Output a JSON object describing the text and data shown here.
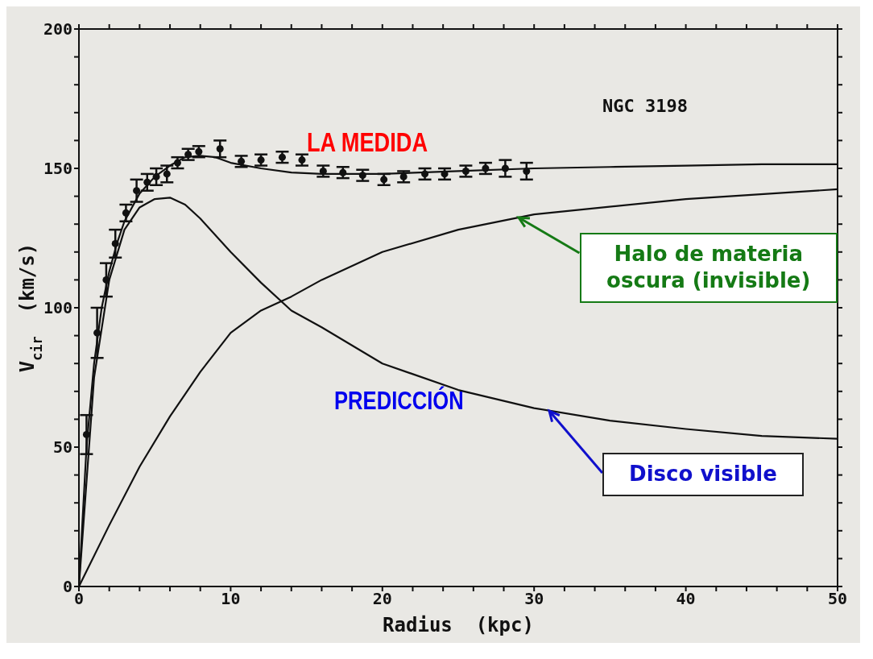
{
  "chart_data": {
    "type": "line",
    "xlabel": "Radius  (kpc)",
    "ylabel": "V$_{cir}$  (km/s)",
    "xlim": [
      0,
      50
    ],
    "ylim": [
      0,
      200
    ],
    "xticks": [
      0,
      {
        "value": 2,
        "label": null
      },
      {
        "value": 4,
        "label": null
      },
      {
        "value": 6,
        "label": null
      },
      {
        "value": 8,
        "label": null
      },
      10,
      {
        "value": 12,
        "label": null
      },
      {
        "value": 14,
        "label": null
      },
      {
        "value": 16,
        "label": null
      },
      {
        "value": 18,
        "label": null
      },
      20,
      {
        "value": 22,
        "label": null
      },
      {
        "value": 24,
        "label": null
      },
      {
        "value": 26,
        "label": null
      },
      {
        "value": 28,
        "label": null
      },
      30,
      {
        "value": 32,
        "label": null
      },
      {
        "value": 34,
        "label": null
      },
      {
        "value": 36,
        "label": null
      },
      {
        "value": 38,
        "label": null
      },
      40,
      {
        "value": 42,
        "label": null
      },
      {
        "value": 44,
        "label": null
      },
      {
        "value": 46,
        "label": null
      },
      {
        "value": 48,
        "label": null
      },
      50
    ],
    "yticks": [
      0,
      {
        "value": 10,
        "label": null
      },
      {
        "value": 20,
        "label": null
      },
      {
        "value": 30,
        "label": null
      },
      {
        "value": 40,
        "label": null
      },
      50,
      {
        "value": 60,
        "label": null
      },
      {
        "value": 70,
        "label": null
      },
      {
        "value": 80,
        "label": null
      },
      {
        "value": 90,
        "label": null
      },
      100,
      {
        "value": 110,
        "label": null
      },
      {
        "value": 120,
        "label": null
      },
      {
        "value": 130,
        "label": null
      },
      {
        "value": 140,
        "label": null
      },
      150,
      {
        "value": 160,
        "label": null
      },
      {
        "value": 170,
        "label": null
      },
      {
        "value": 180,
        "label": null
      },
      {
        "value": 190,
        "label": null
      },
      200
    ],
    "grid": false,
    "legend": false,
    "series": [
      {
        "type": "scatter",
        "color": "#111111",
        "marker": "circle",
        "x": [
          0.5,
          1.2,
          1.8,
          2.4,
          3.1,
          3.8,
          4.5,
          5.1,
          5.8,
          6.5,
          7.2,
          7.9,
          9.3,
          10.7,
          12.0,
          13.4,
          14.7,
          16.1,
          17.4,
          18.7,
          20.1,
          21.4,
          22.8,
          24.1,
          25.5,
          26.8,
          28.1,
          29.5
        ],
        "values": [
          54.5,
          91,
          110,
          123,
          134,
          142,
          145,
          147,
          148,
          152,
          155,
          156,
          157,
          152.5,
          153,
          154,
          153,
          149,
          148.5,
          147.5,
          146,
          147,
          148,
          148,
          149,
          150,
          150,
          149
        ],
        "errors": [
          7,
          9,
          6,
          5,
          3,
          4,
          3,
          3,
          3,
          2,
          2,
          2,
          3,
          2,
          2,
          2,
          2,
          2,
          2,
          2,
          2,
          2,
          2,
          2,
          2,
          2,
          3,
          3
        ]
      },
      {
        "color": "#111111",
        "marker": "none",
        "line_style": "solid",
        "x": [
          0,
          0.5,
          1,
          1.5,
          2,
          2.5,
          3,
          4,
          5,
          6,
          7,
          8,
          9,
          10,
          12,
          14,
          16,
          18,
          20,
          25,
          30,
          35,
          40,
          45,
          50
        ],
        "values": [
          0,
          50,
          80,
          100,
          113,
          123,
          131,
          141,
          147,
          151,
          154,
          154.5,
          154,
          152,
          150,
          148.5,
          148,
          148,
          148,
          149,
          150,
          150.5,
          151,
          151.5,
          151.5
        ]
      },
      {
        "color": "#111111",
        "marker": "none",
        "line_style": "solid",
        "x": [
          0,
          1,
          2,
          3,
          4,
          5,
          6,
          7,
          8,
          10,
          12,
          14,
          16,
          20,
          25,
          30,
          35,
          40,
          45,
          50
        ],
        "values": [
          0,
          75,
          110,
          128,
          136,
          139,
          139.5,
          137,
          132,
          120,
          109,
          99,
          93,
          80,
          70.5,
          64,
          59.5,
          56.5,
          54,
          53
        ]
      },
      {
        "color": "#111111",
        "marker": "none",
        "line_style": "solid",
        "x": [
          0,
          2,
          4,
          6,
          8,
          10,
          12,
          14,
          16,
          20,
          25,
          30,
          40,
          50
        ],
        "values": [
          0,
          22,
          43,
          61,
          77,
          91,
          99,
          104,
          110,
          120,
          128,
          133.5,
          139,
          142.5
        ]
      }
    ],
    "annotations": [
      "NGC 3198",
      "LA MEDIDA",
      "PREDICCIÓN",
      {
        "text": "Halo de materia oscura (invisible)",
        "x": 29,
        "y": 132.5
      },
      {
        "text": "Disco visible",
        "x": 31,
        "y": 63
      }
    ]
  }
}
